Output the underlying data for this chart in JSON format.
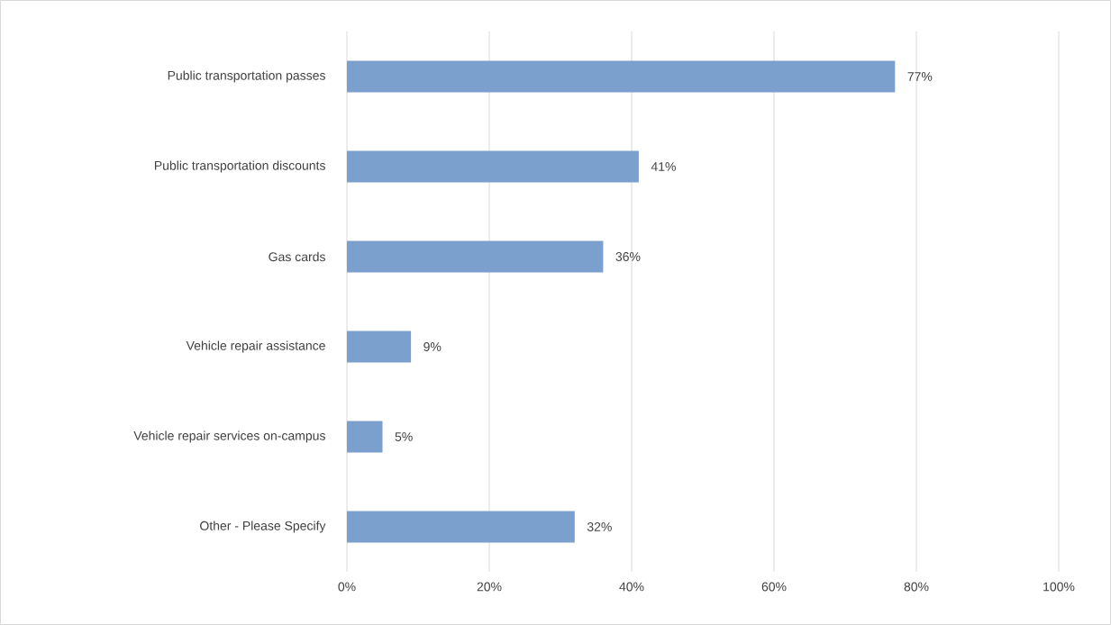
{
  "chart_data": {
    "type": "bar",
    "orientation": "horizontal",
    "categories": [
      "Public transportation passes",
      "Public transportation discounts",
      "Gas cards",
      "Vehicle repair assistance",
      "Vehicle repair services on-campus",
      "Other - Please Specify"
    ],
    "values": [
      77,
      41,
      36,
      9,
      5,
      32
    ],
    "value_labels": [
      "77%",
      "41%",
      "36%",
      "9%",
      "5%",
      "32%"
    ],
    "color": "#7ba0cd",
    "xlim": [
      0,
      100
    ],
    "xticks": [
      {
        "value": 0,
        "label": "0%"
      },
      {
        "value": 20,
        "label": "20%"
      },
      {
        "value": 40,
        "label": "40%"
      },
      {
        "value": 60,
        "label": "60%"
      },
      {
        "value": 80,
        "label": "80%"
      },
      {
        "value": 100,
        "label": "100%"
      }
    ],
    "grid": "x"
  }
}
